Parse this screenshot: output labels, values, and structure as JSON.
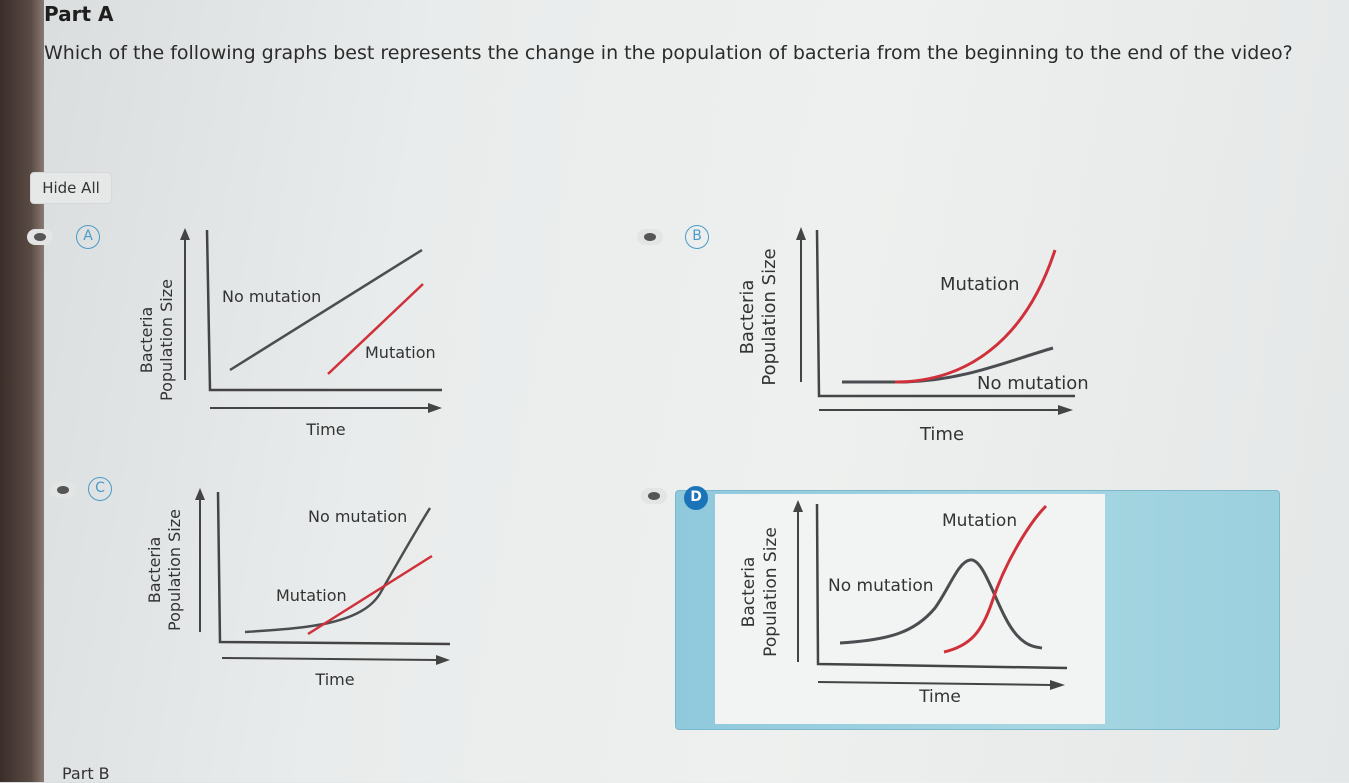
{
  "part_a": "Part A",
  "question": "Which of the following graphs best represents the change in the population of bacteria from the beginning to the end of the video?",
  "hide_all": "Hide All",
  "options": [
    {
      "letter": "A",
      "selected": false,
      "y_label_1": "Bacteria",
      "y_label_2": "Population Size",
      "x_label": "Time",
      "label_no_mutation": "No mutation",
      "label_mutation": "Mutation"
    },
    {
      "letter": "B",
      "selected": false,
      "y_label_1": "Bacteria",
      "y_label_2": "Population Size",
      "x_label": "Time",
      "label_no_mutation": "No mutation",
      "label_mutation": "Mutation"
    },
    {
      "letter": "C",
      "selected": false,
      "y_label_1": "Bacteria",
      "y_label_2": "Population Size",
      "x_label": "Time",
      "label_no_mutation": "No mutation",
      "label_mutation": "Mutation"
    },
    {
      "letter": "D",
      "selected": true,
      "y_label_1": "Bacteria",
      "y_label_2": "Population Size",
      "x_label": "Time",
      "label_no_mutation": "No mutation",
      "label_mutation": "Mutation"
    }
  ],
  "part_b": "Part B",
  "colors": {
    "mutation": "#d0303a",
    "no_mutation": "#4a4e50",
    "selected": "#1c74b8",
    "selected_bg": "#a6d6e2"
  },
  "icons": {
    "visibility": "eye-icon"
  }
}
